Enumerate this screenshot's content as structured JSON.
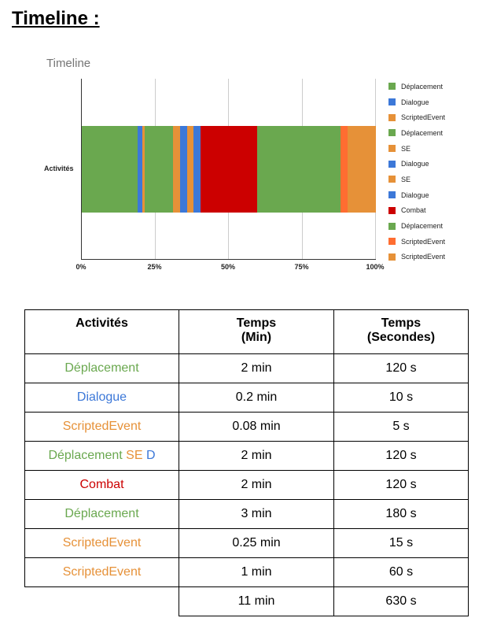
{
  "heading": "Timeline :",
  "colors": {
    "green": "#6aa84f",
    "blue": "#3c78d8",
    "orange": "#e69138",
    "red": "#cc0000",
    "orangered": "#ff6d31"
  },
  "chart_data": {
    "type": "bar",
    "stacked": "100%",
    "orientation": "horizontal",
    "title": "Timeline",
    "categories": [
      "Activités"
    ],
    "xticks": [
      "0%",
      "25%",
      "50%",
      "75%",
      "100%"
    ],
    "xlim": [
      0,
      100
    ],
    "legend_position": "right",
    "series": [
      {
        "name": "Déplacement",
        "value": 120,
        "color": "#6aa84f"
      },
      {
        "name": "Dialogue",
        "value": 10,
        "color": "#3c78d8"
      },
      {
        "name": "ScriptedEvent",
        "value": 5,
        "color": "#e69138"
      },
      {
        "name": "Déplacement",
        "value": 60,
        "color": "#6aa84f"
      },
      {
        "name": "SE",
        "value": 15,
        "color": "#e69138"
      },
      {
        "name": "Dialogue",
        "value": 15,
        "color": "#3c78d8"
      },
      {
        "name": "SE",
        "value": 15,
        "color": "#e69138"
      },
      {
        "name": "Dialogue",
        "value": 15,
        "color": "#3c78d8"
      },
      {
        "name": "Combat",
        "value": 120,
        "color": "#cc0000"
      },
      {
        "name": "Déplacement",
        "value": 180,
        "color": "#6aa84f"
      },
      {
        "name": "ScriptedEvent",
        "value": 15,
        "color": "#ff6d31"
      },
      {
        "name": "ScriptedEvent",
        "value": 60,
        "color": "#e69138"
      }
    ]
  },
  "table": {
    "headers": [
      "Activités",
      "Temps\n(Min)",
      "Temps\n(Secondes)"
    ],
    "rows": [
      {
        "parts": [
          {
            "t": "Déplacement",
            "c": "#6aa84f"
          }
        ],
        "min": "2 min",
        "sec": "120 s"
      },
      {
        "parts": [
          {
            "t": "Dialogue",
            "c": "#3c78d8"
          }
        ],
        "min": "0.2 min",
        "sec": "10 s"
      },
      {
        "parts": [
          {
            "t": "ScriptedEvent",
            "c": "#e69138"
          }
        ],
        "min": "0.08 min",
        "sec": "5 s"
      },
      {
        "parts": [
          {
            "t": "Déplacement ",
            "c": "#6aa84f"
          },
          {
            "t": "SE ",
            "c": "#e69138"
          },
          {
            "t": "D",
            "c": "#3c78d8"
          }
        ],
        "min": "2 min",
        "sec": "120 s"
      },
      {
        "parts": [
          {
            "t": "Combat",
            "c": "#cc0000"
          }
        ],
        "min": "2 min",
        "sec": "120 s"
      },
      {
        "parts": [
          {
            "t": "Déplacement",
            "c": "#6aa84f"
          }
        ],
        "min": "3 min",
        "sec": "180 s"
      },
      {
        "parts": [
          {
            "t": "ScriptedEvent",
            "c": "#e69138"
          }
        ],
        "min": "0.25 min",
        "sec": "15 s"
      },
      {
        "parts": [
          {
            "t": "ScriptedEvent",
            "c": "#e69138"
          }
        ],
        "min": "1 min",
        "sec": "60 s"
      }
    ],
    "total": {
      "min": "11 min",
      "sec": "630 s"
    }
  }
}
